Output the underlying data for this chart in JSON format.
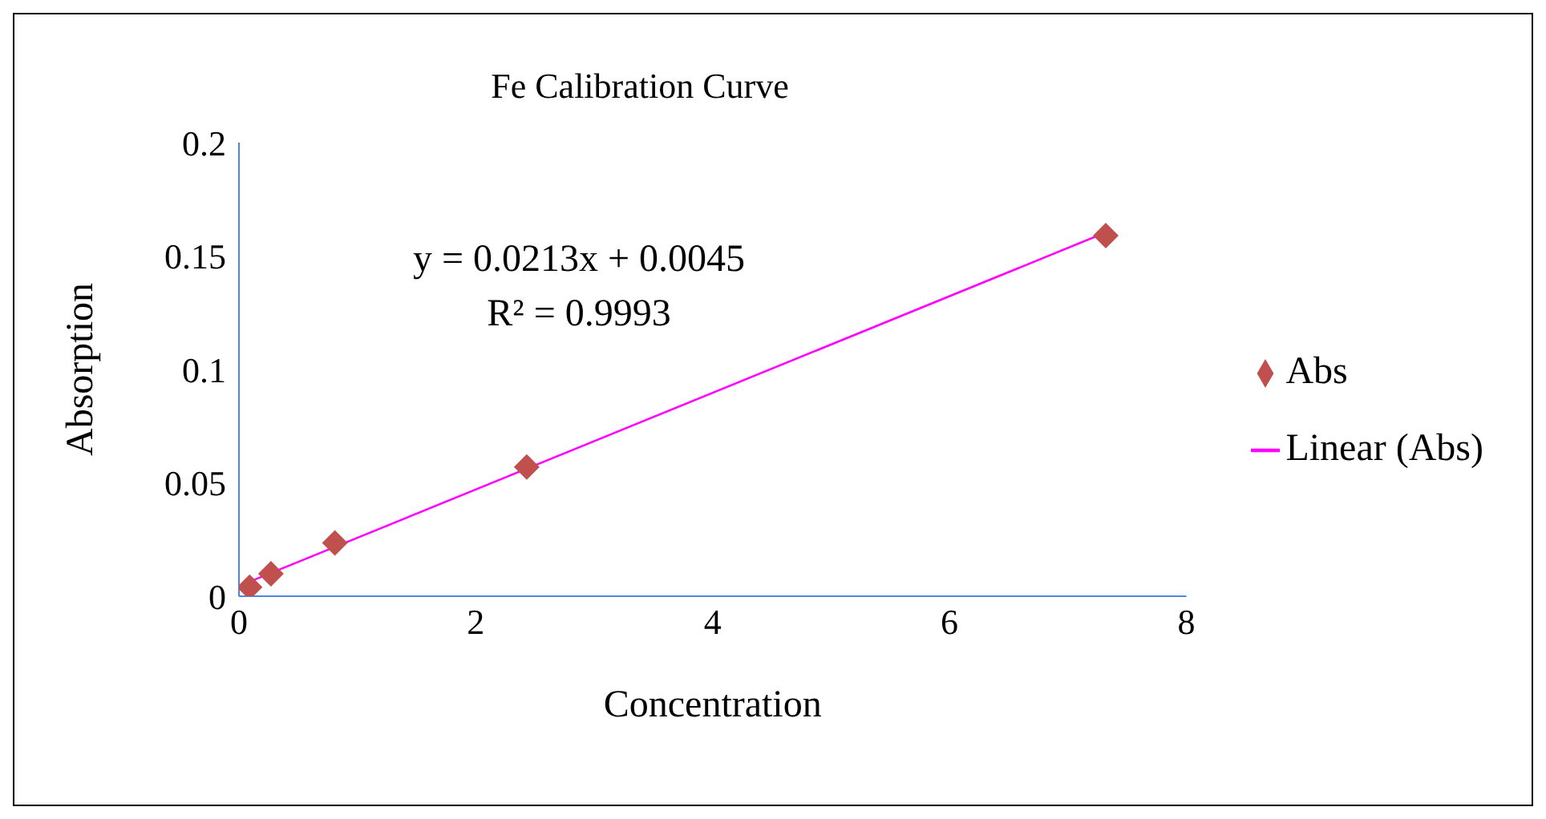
{
  "chart_data": {
    "type": "scatter",
    "title": "Fe Calibration Curve",
    "xlabel": "Concentration",
    "ylabel": "Absorption",
    "x": [
      0.09,
      0.27,
      0.81,
      2.43,
      7.32
    ],
    "series": [
      {
        "name": "Abs",
        "color": "#c0504d",
        "values": [
          0.004,
          0.0099,
          0.0235,
          0.057,
          0.159
        ],
        "marker": "diamond"
      },
      {
        "name": "Linear (Abs)",
        "type": "line",
        "color": "#ff00ff",
        "x": [
          0.09,
          7.32
        ],
        "values": [
          0.0064,
          0.1604
        ],
        "marker": "none",
        "line_style": "solid"
      }
    ],
    "annotations": [
      "y = 0.0213x + 0.0045",
      "R² = 0.9993"
    ],
    "xlim": [
      0,
      8
    ],
    "xticks": [
      0,
      2,
      4,
      6,
      8
    ],
    "ylim": [
      0,
      0.2
    ],
    "yticks": [
      0,
      0.05,
      0.1,
      0.15,
      0.2
    ],
    "grid": false,
    "legend": "right"
  }
}
